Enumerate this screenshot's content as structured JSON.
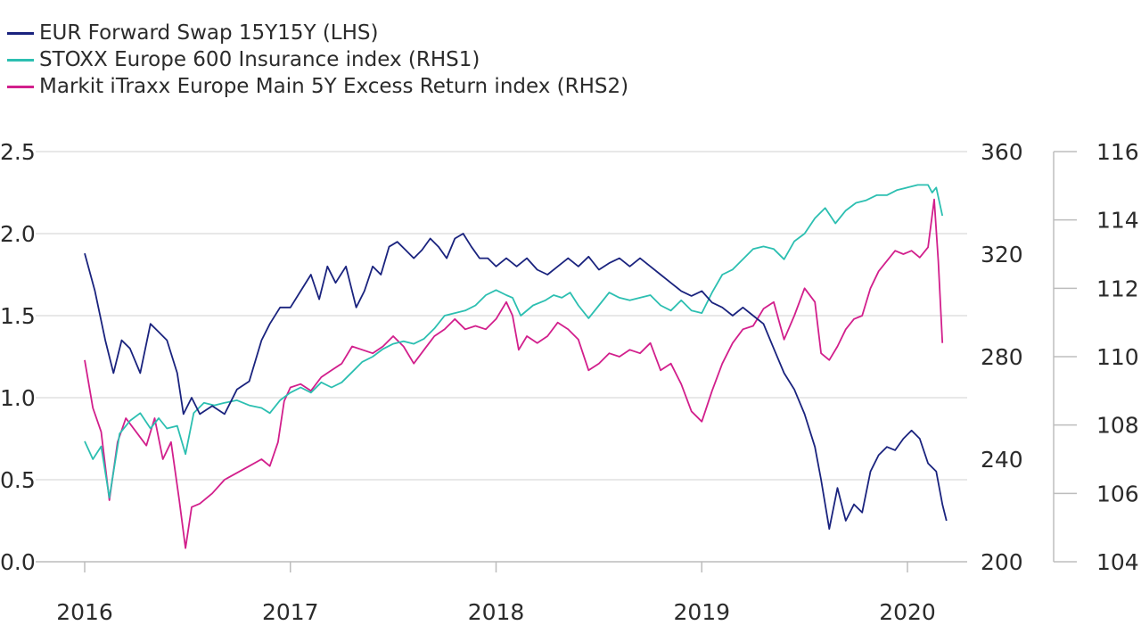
{
  "chart_data": {
    "type": "line",
    "x_ticks": [
      "2016",
      "2017",
      "2018",
      "2019",
      "2020"
    ],
    "x_range": [
      2016.0,
      2020.25
    ],
    "axes": {
      "lhs": {
        "ylim": [
          0,
          2.5
        ],
        "ticks": [
          "0.0",
          "0.5",
          "1.0",
          "1.5",
          "2.0",
          "2.5"
        ]
      },
      "rhs1": {
        "ylim": [
          200,
          360
        ],
        "ticks": [
          "200",
          "240",
          "280",
          "320",
          "360"
        ]
      },
      "rhs2": {
        "ylim": [
          104,
          116
        ],
        "ticks": [
          "104",
          "106",
          "108",
          "110",
          "112",
          "114",
          "116"
        ]
      }
    },
    "grid": true,
    "legend_position": "top-left",
    "series": [
      {
        "name": "EUR Forward Swap 15Y15Y (LHS)",
        "axis": "lhs",
        "color": "#1a237e",
        "points": [
          [
            2016.0,
            1.88
          ],
          [
            2016.05,
            1.65
          ],
          [
            2016.1,
            1.35
          ],
          [
            2016.14,
            1.15
          ],
          [
            2016.18,
            1.35
          ],
          [
            2016.22,
            1.3
          ],
          [
            2016.27,
            1.15
          ],
          [
            2016.32,
            1.45
          ],
          [
            2016.36,
            1.4
          ],
          [
            2016.4,
            1.35
          ],
          [
            2016.45,
            1.15
          ],
          [
            2016.48,
            0.9
          ],
          [
            2016.52,
            1.0
          ],
          [
            2016.56,
            0.9
          ],
          [
            2016.62,
            0.95
          ],
          [
            2016.68,
            0.9
          ],
          [
            2016.74,
            1.05
          ],
          [
            2016.8,
            1.1
          ],
          [
            2016.86,
            1.35
          ],
          [
            2016.9,
            1.45
          ],
          [
            2016.95,
            1.55
          ],
          [
            2017.0,
            1.55
          ],
          [
            2017.05,
            1.65
          ],
          [
            2017.1,
            1.75
          ],
          [
            2017.14,
            1.6
          ],
          [
            2017.18,
            1.8
          ],
          [
            2017.22,
            1.7
          ],
          [
            2017.27,
            1.8
          ],
          [
            2017.32,
            1.55
          ],
          [
            2017.36,
            1.65
          ],
          [
            2017.4,
            1.8
          ],
          [
            2017.44,
            1.75
          ],
          [
            2017.48,
            1.92
          ],
          [
            2017.52,
            1.95
          ],
          [
            2017.56,
            1.9
          ],
          [
            2017.6,
            1.85
          ],
          [
            2017.64,
            1.9
          ],
          [
            2017.68,
            1.97
          ],
          [
            2017.72,
            1.92
          ],
          [
            2017.76,
            1.85
          ],
          [
            2017.8,
            1.97
          ],
          [
            2017.84,
            2.0
          ],
          [
            2017.88,
            1.92
          ],
          [
            2017.92,
            1.85
          ],
          [
            2017.96,
            1.85
          ],
          [
            2018.0,
            1.8
          ],
          [
            2018.05,
            1.85
          ],
          [
            2018.1,
            1.8
          ],
          [
            2018.15,
            1.85
          ],
          [
            2018.2,
            1.78
          ],
          [
            2018.25,
            1.75
          ],
          [
            2018.3,
            1.8
          ],
          [
            2018.35,
            1.85
          ],
          [
            2018.4,
            1.8
          ],
          [
            2018.45,
            1.86
          ],
          [
            2018.5,
            1.78
          ],
          [
            2018.55,
            1.82
          ],
          [
            2018.6,
            1.85
          ],
          [
            2018.65,
            1.8
          ],
          [
            2018.7,
            1.85
          ],
          [
            2018.75,
            1.8
          ],
          [
            2018.8,
            1.75
          ],
          [
            2018.85,
            1.7
          ],
          [
            2018.9,
            1.65
          ],
          [
            2018.95,
            1.62
          ],
          [
            2019.0,
            1.65
          ],
          [
            2019.05,
            1.58
          ],
          [
            2019.1,
            1.55
          ],
          [
            2019.15,
            1.5
          ],
          [
            2019.2,
            1.55
          ],
          [
            2019.25,
            1.5
          ],
          [
            2019.3,
            1.45
          ],
          [
            2019.35,
            1.3
          ],
          [
            2019.4,
            1.15
          ],
          [
            2019.45,
            1.05
          ],
          [
            2019.5,
            0.9
          ],
          [
            2019.55,
            0.7
          ],
          [
            2019.58,
            0.5
          ],
          [
            2019.62,
            0.2
          ],
          [
            2019.66,
            0.45
          ],
          [
            2019.7,
            0.25
          ],
          [
            2019.74,
            0.35
          ],
          [
            2019.78,
            0.3
          ],
          [
            2019.82,
            0.55
          ],
          [
            2019.86,
            0.65
          ],
          [
            2019.9,
            0.7
          ],
          [
            2019.94,
            0.68
          ],
          [
            2019.98,
            0.75
          ],
          [
            2020.02,
            0.8
          ],
          [
            2020.06,
            0.75
          ],
          [
            2020.1,
            0.6
          ],
          [
            2020.14,
            0.55
          ],
          [
            2020.17,
            0.35
          ],
          [
            2020.19,
            0.25
          ]
        ]
      },
      {
        "name": "STOXX Europe 600 Insurance index (RHS1)",
        "axis": "rhs1",
        "color": "#2cbfb1",
        "points": [
          [
            2016.0,
            247
          ],
          [
            2016.04,
            240
          ],
          [
            2016.08,
            245
          ],
          [
            2016.12,
            225
          ],
          [
            2016.17,
            250
          ],
          [
            2016.22,
            255
          ],
          [
            2016.27,
            258
          ],
          [
            2016.32,
            252
          ],
          [
            2016.36,
            256
          ],
          [
            2016.4,
            252
          ],
          [
            2016.45,
            253
          ],
          [
            2016.49,
            242
          ],
          [
            2016.53,
            258
          ],
          [
            2016.58,
            262
          ],
          [
            2016.63,
            261
          ],
          [
            2016.68,
            262
          ],
          [
            2016.74,
            263
          ],
          [
            2016.8,
            261
          ],
          [
            2016.86,
            260
          ],
          [
            2016.9,
            258
          ],
          [
            2016.95,
            263
          ],
          [
            2017.0,
            266
          ],
          [
            2017.05,
            268
          ],
          [
            2017.1,
            266
          ],
          [
            2017.15,
            270
          ],
          [
            2017.2,
            268
          ],
          [
            2017.25,
            270
          ],
          [
            2017.3,
            274
          ],
          [
            2017.35,
            278
          ],
          [
            2017.4,
            280
          ],
          [
            2017.45,
            283
          ],
          [
            2017.5,
            285
          ],
          [
            2017.55,
            286
          ],
          [
            2017.6,
            285
          ],
          [
            2017.65,
            287
          ],
          [
            2017.7,
            291
          ],
          [
            2017.75,
            296
          ],
          [
            2017.8,
            297
          ],
          [
            2017.85,
            298
          ],
          [
            2017.9,
            300
          ],
          [
            2017.95,
            304
          ],
          [
            2018.0,
            306
          ],
          [
            2018.05,
            304
          ],
          [
            2018.08,
            303
          ],
          [
            2018.12,
            296
          ],
          [
            2018.18,
            300
          ],
          [
            2018.24,
            302
          ],
          [
            2018.28,
            304
          ],
          [
            2018.32,
            303
          ],
          [
            2018.36,
            305
          ],
          [
            2018.4,
            300
          ],
          [
            2018.45,
            295
          ],
          [
            2018.5,
            300
          ],
          [
            2018.55,
            305
          ],
          [
            2018.6,
            303
          ],
          [
            2018.65,
            302
          ],
          [
            2018.7,
            303
          ],
          [
            2018.75,
            304
          ],
          [
            2018.8,
            300
          ],
          [
            2018.85,
            298
          ],
          [
            2018.9,
            302
          ],
          [
            2018.95,
            298
          ],
          [
            2019.0,
            297
          ],
          [
            2019.05,
            305
          ],
          [
            2019.1,
            312
          ],
          [
            2019.15,
            314
          ],
          [
            2019.2,
            318
          ],
          [
            2019.25,
            322
          ],
          [
            2019.3,
            323
          ],
          [
            2019.35,
            322
          ],
          [
            2019.4,
            318
          ],
          [
            2019.45,
            325
          ],
          [
            2019.5,
            328
          ],
          [
            2019.55,
            334
          ],
          [
            2019.6,
            338
          ],
          [
            2019.65,
            332
          ],
          [
            2019.7,
            337
          ],
          [
            2019.75,
            340
          ],
          [
            2019.8,
            341
          ],
          [
            2019.85,
            343
          ],
          [
            2019.9,
            343
          ],
          [
            2019.95,
            345
          ],
          [
            2020.0,
            346
          ],
          [
            2020.05,
            347
          ],
          [
            2020.1,
            347
          ],
          [
            2020.12,
            344
          ],
          [
            2020.14,
            346
          ],
          [
            2020.17,
            335
          ]
        ]
      },
      {
        "name": "Markit iTraxx Europe Main 5Y Excess Return index (RHS2)",
        "axis": "rhs2",
        "color": "#d21f8c",
        "points": [
          [
            2016.0,
            109.9
          ],
          [
            2016.04,
            108.5
          ],
          [
            2016.08,
            107.8
          ],
          [
            2016.12,
            105.8
          ],
          [
            2016.16,
            107.5
          ],
          [
            2016.2,
            108.2
          ],
          [
            2016.25,
            107.8
          ],
          [
            2016.3,
            107.4
          ],
          [
            2016.34,
            108.2
          ],
          [
            2016.38,
            107.0
          ],
          [
            2016.42,
            107.5
          ],
          [
            2016.46,
            105.8
          ],
          [
            2016.49,
            104.4
          ],
          [
            2016.52,
            105.6
          ],
          [
            2016.56,
            105.7
          ],
          [
            2016.62,
            106.0
          ],
          [
            2016.68,
            106.4
          ],
          [
            2016.74,
            106.6
          ],
          [
            2016.8,
            106.8
          ],
          [
            2016.86,
            107.0
          ],
          [
            2016.9,
            106.8
          ],
          [
            2016.94,
            107.5
          ],
          [
            2016.97,
            108.7
          ],
          [
            2017.0,
            109.1
          ],
          [
            2017.05,
            109.2
          ],
          [
            2017.1,
            109.0
          ],
          [
            2017.15,
            109.4
          ],
          [
            2017.2,
            109.6
          ],
          [
            2017.25,
            109.8
          ],
          [
            2017.3,
            110.3
          ],
          [
            2017.35,
            110.2
          ],
          [
            2017.4,
            110.1
          ],
          [
            2017.45,
            110.3
          ],
          [
            2017.5,
            110.6
          ],
          [
            2017.55,
            110.3
          ],
          [
            2017.6,
            109.8
          ],
          [
            2017.65,
            110.2
          ],
          [
            2017.7,
            110.6
          ],
          [
            2017.75,
            110.8
          ],
          [
            2017.8,
            111.1
          ],
          [
            2017.85,
            110.8
          ],
          [
            2017.9,
            110.9
          ],
          [
            2017.95,
            110.8
          ],
          [
            2018.0,
            111.1
          ],
          [
            2018.05,
            111.6
          ],
          [
            2018.08,
            111.2
          ],
          [
            2018.11,
            110.2
          ],
          [
            2018.15,
            110.6
          ],
          [
            2018.2,
            110.4
          ],
          [
            2018.25,
            110.6
          ],
          [
            2018.3,
            111.0
          ],
          [
            2018.35,
            110.8
          ],
          [
            2018.4,
            110.5
          ],
          [
            2018.45,
            109.6
          ],
          [
            2018.5,
            109.8
          ],
          [
            2018.55,
            110.1
          ],
          [
            2018.6,
            110.0
          ],
          [
            2018.65,
            110.2
          ],
          [
            2018.7,
            110.1
          ],
          [
            2018.75,
            110.4
          ],
          [
            2018.8,
            109.6
          ],
          [
            2018.85,
            109.8
          ],
          [
            2018.9,
            109.2
          ],
          [
            2018.95,
            108.4
          ],
          [
            2019.0,
            108.1
          ],
          [
            2019.05,
            109.0
          ],
          [
            2019.1,
            109.8
          ],
          [
            2019.15,
            110.4
          ],
          [
            2019.2,
            110.8
          ],
          [
            2019.25,
            110.9
          ],
          [
            2019.3,
            111.4
          ],
          [
            2019.35,
            111.6
          ],
          [
            2019.4,
            110.5
          ],
          [
            2019.45,
            111.2
          ],
          [
            2019.5,
            112.0
          ],
          [
            2019.55,
            111.6
          ],
          [
            2019.58,
            110.1
          ],
          [
            2019.62,
            109.9
          ],
          [
            2019.66,
            110.3
          ],
          [
            2019.7,
            110.8
          ],
          [
            2019.74,
            111.1
          ],
          [
            2019.78,
            111.2
          ],
          [
            2019.82,
            112.0
          ],
          [
            2019.86,
            112.5
          ],
          [
            2019.9,
            112.8
          ],
          [
            2019.94,
            113.1
          ],
          [
            2019.98,
            113.0
          ],
          [
            2020.02,
            113.1
          ],
          [
            2020.06,
            112.9
          ],
          [
            2020.1,
            113.2
          ],
          [
            2020.13,
            114.6
          ],
          [
            2020.15,
            112.8
          ],
          [
            2020.17,
            110.4
          ]
        ]
      }
    ]
  }
}
